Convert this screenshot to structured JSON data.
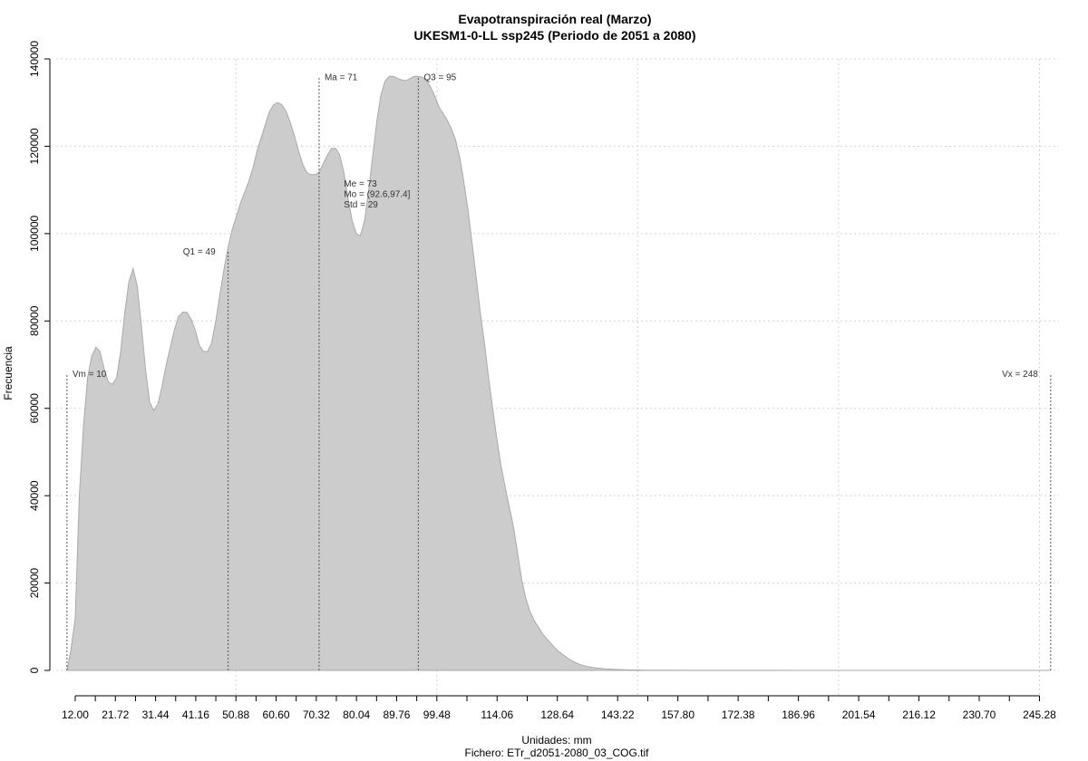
{
  "chart_data": {
    "type": "area",
    "title": "Evapotranspiración real (Marzo)",
    "subtitle": "UKESM1-0-LL ssp245 (Periodo de 2051 a 2080)",
    "xlabel": "Unidades: mm",
    "ylabel": "Frecuencia",
    "footer": "Fichero: ETr_d2051-2080_03_COG.tif",
    "xlim": [
      7.4,
      250.0
    ],
    "ylim": [
      0,
      140000
    ],
    "grid": true,
    "yticks": [
      0,
      20000,
      40000,
      60000,
      80000,
      100000,
      120000,
      140000
    ],
    "yticklabels": [
      "0",
      "20000",
      "40000",
      "60000",
      "80000",
      "100000",
      "120000",
      "140000"
    ],
    "xticks": [
      12.0,
      21.72,
      31.44,
      41.16,
      50.88,
      60.6,
      70.32,
      80.04,
      89.76,
      99.48,
      114.06,
      128.64,
      143.22,
      157.8,
      172.38,
      186.96,
      201.54,
      216.12,
      230.7,
      245.28
    ],
    "xticklabels": [
      "12.00",
      "21.72",
      "31.44",
      "41.16",
      "50.88",
      "60.60",
      "70.32",
      "80.04",
      "89.76",
      "99.48",
      "114.06",
      "128.64",
      "143.22",
      "157.80",
      "172.38",
      "186.96",
      "201.54",
      "216.12",
      "230.70",
      "245.28"
    ],
    "minor_xticks": [
      16.86,
      26.58,
      36.3,
      46.02,
      55.74,
      65.46,
      75.18,
      84.9,
      94.62,
      106.77,
      121.35,
      135.93,
      150.51,
      165.09,
      179.67,
      194.25,
      208.83,
      223.41,
      237.99
    ],
    "grid_x": [
      50.88,
      99.48,
      148.08,
      196.68,
      245.28
    ],
    "x": [
      10,
      11,
      12,
      13,
      14,
      15,
      16,
      17,
      18,
      19,
      20,
      21,
      22,
      23,
      24,
      25,
      26,
      27,
      28,
      29,
      30,
      31,
      32,
      33,
      34,
      35,
      36,
      37,
      38,
      39,
      40,
      41,
      42,
      43,
      44,
      45,
      46,
      47,
      48,
      49,
      50,
      51,
      52,
      53,
      54,
      55,
      56,
      57,
      58,
      59,
      60,
      61,
      62,
      63,
      64,
      65,
      66,
      67,
      68,
      69,
      70,
      71,
      72,
      73,
      74,
      75,
      76,
      77,
      78,
      79,
      80,
      81,
      82,
      83,
      84,
      85,
      86,
      87,
      88,
      89,
      90,
      91,
      92,
      93,
      94,
      95,
      96,
      97,
      98,
      99,
      100,
      101,
      102,
      103,
      104,
      105,
      106,
      107,
      108,
      109,
      110,
      111,
      112,
      113,
      114,
      115,
      116,
      117,
      118,
      119,
      120,
      121,
      122,
      123,
      124,
      125,
      126,
      127,
      128,
      129,
      130,
      131,
      132,
      133,
      134,
      135,
      136,
      137,
      138,
      139,
      140,
      142,
      144,
      146,
      148,
      150,
      155,
      160,
      170,
      180,
      200,
      220,
      240,
      248
    ],
    "y": [
      0,
      5000,
      12000,
      40000,
      56000,
      67000,
      72000,
      74000,
      73000,
      69000,
      66000,
      65500,
      67000,
      73000,
      82000,
      89000,
      92000,
      88000,
      79000,
      69000,
      61500,
      59500,
      61000,
      65000,
      70000,
      74000,
      78000,
      81000,
      82000,
      82000,
      80500,
      78000,
      74500,
      73000,
      73000,
      75000,
      80000,
      86000,
      92000,
      97000,
      101000,
      104000,
      107000,
      109500,
      112000,
      115000,
      119000,
      122000,
      125000,
      128000,
      129500,
      130000,
      129500,
      128000,
      125500,
      122500,
      119000,
      116000,
      114000,
      113500,
      113500,
      114000,
      116000,
      118000,
      119500,
      119500,
      118000,
      114000,
      108000,
      103000,
      100000,
      99500,
      103000,
      110000,
      118000,
      126000,
      132000,
      135000,
      136000,
      136000,
      135500,
      135200,
      135000,
      135500,
      136000,
      136000,
      135800,
      135000,
      133500,
      131500,
      129000,
      127500,
      126000,
      124000,
      121500,
      117500,
      112000,
      105500,
      98000,
      90000,
      82000,
      75000,
      67000,
      60000,
      53000,
      47000,
      42000,
      37500,
      33000,
      27000,
      21000,
      16500,
      13500,
      11500,
      10000,
      8500,
      7300,
      6300,
      5200,
      4300,
      3600,
      2900,
      2300,
      1800,
      1400,
      1100,
      850,
      700,
      550,
      450,
      350,
      250,
      180,
      130,
      100,
      70,
      45,
      30,
      20,
      12,
      6,
      3,
      1,
      0
    ],
    "markers": [
      {
        "name": "vm",
        "label": "Vm = 10",
        "x": 10,
        "height": 68000,
        "label_side": "right"
      },
      {
        "name": "q1",
        "label": "Q1 = 49",
        "x": 49,
        "height": 96000,
        "label_side": "left"
      },
      {
        "name": "ma",
        "label": "Ma = 71",
        "x": 71,
        "height": 136000,
        "label_side": "right"
      },
      {
        "name": "q3",
        "label": "Q3 = 95",
        "x": 95,
        "height": 136000,
        "label_side": "right"
      },
      {
        "name": "vx",
        "label": "Vx = 248",
        "x": 248,
        "height": 68000,
        "label_side": "left"
      }
    ],
    "stats_box": {
      "lines": [
        "Me = 73",
        "Mo = (92.6,97.4]",
        "Std = 29"
      ],
      "x": 77
    }
  }
}
